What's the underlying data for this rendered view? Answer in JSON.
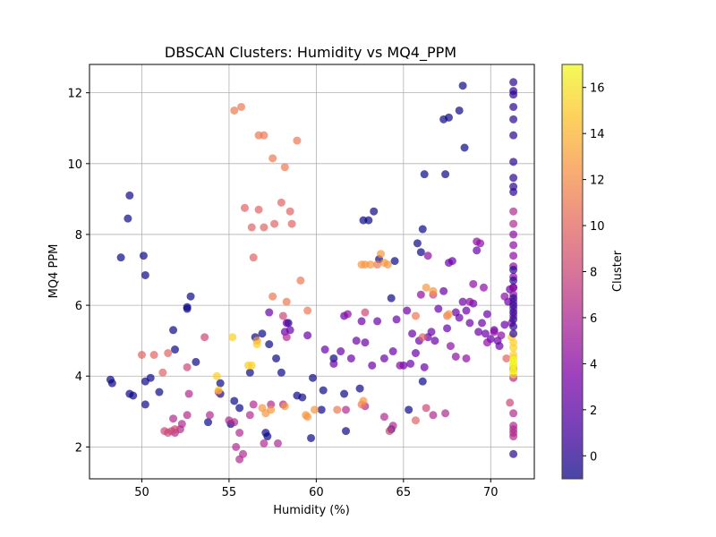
{
  "chart_data": {
    "type": "scatter",
    "title": "DBSCAN Clusters: Humidity vs MQ4_PPM",
    "xlabel": "Humidity (%)",
    "ylabel": "MQ4 PPM",
    "xlim": [
      47,
      72.5
    ],
    "ylim": [
      1.1,
      12.8
    ],
    "xticks": [
      50,
      55,
      60,
      65,
      70
    ],
    "yticks": [
      2,
      4,
      6,
      8,
      10,
      12
    ],
    "grid": true,
    "colormap": "plasma",
    "colorbar": {
      "label": "Cluster",
      "range": [
        -1,
        17
      ],
      "ticks": [
        0,
        2,
        4,
        6,
        8,
        10,
        12,
        14,
        16
      ]
    },
    "series": [
      {
        "cluster": -1,
        "color": "#0d0887",
        "points": [
          [
            48.2,
            3.9
          ],
          [
            48.3,
            3.8
          ],
          [
            48.8,
            7.35
          ],
          [
            49.2,
            8.45
          ],
          [
            49.3,
            9.1
          ],
          [
            49.3,
            3.5
          ],
          [
            49.5,
            3.45
          ],
          [
            50.1,
            7.4
          ],
          [
            50.2,
            6.85
          ],
          [
            50.2,
            3.85
          ],
          [
            50.2,
            3.2
          ],
          [
            50.5,
            3.95
          ],
          [
            51.0,
            3.55
          ],
          [
            51.8,
            5.3
          ],
          [
            51.9,
            4.75
          ],
          [
            52.6,
            5.95
          ],
          [
            52.6,
            5.9
          ],
          [
            52.8,
            6.25
          ],
          [
            53.1,
            4.4
          ],
          [
            53.8,
            2.7
          ],
          [
            54.5,
            3.8
          ],
          [
            54.5,
            3.5
          ],
          [
            55.1,
            2.65
          ],
          [
            55.3,
            3.3
          ],
          [
            55.6,
            3.1
          ],
          [
            56.2,
            4.1
          ],
          [
            56.5,
            5.1
          ],
          [
            56.9,
            5.2
          ],
          [
            57.1,
            2.4
          ],
          [
            57.2,
            2.3
          ],
          [
            57.3,
            4.9
          ],
          [
            57.7,
            4.5
          ],
          [
            58.0,
            4.1
          ],
          [
            58.4,
            5.5
          ],
          [
            58.9,
            3.45
          ],
          [
            59.2,
            3.4
          ],
          [
            59.7,
            2.25
          ],
          [
            59.8,
            3.95
          ],
          [
            60.3,
            3.05
          ],
          [
            60.4,
            3.6
          ],
          [
            61.0,
            4.5
          ],
          [
            61.6,
            3.5
          ],
          [
            61.7,
            2.45
          ],
          [
            62.5,
            3.65
          ],
          [
            62.7,
            8.4
          ],
          [
            63.0,
            8.4
          ],
          [
            63.3,
            8.65
          ],
          [
            63.6,
            7.3
          ],
          [
            64.3,
            2.5
          ],
          [
            64.3,
            6.2
          ],
          [
            64.5,
            7.25
          ],
          [
            65.3,
            3.05
          ],
          [
            65.8,
            7.75
          ],
          [
            66.0,
            7.5
          ],
          [
            66.1,
            3.85
          ],
          [
            66.1,
            8.15
          ],
          [
            66.2,
            9.7
          ],
          [
            67.3,
            11.25
          ],
          [
            67.4,
            9.7
          ],
          [
            67.6,
            11.3
          ],
          [
            68.2,
            11.5
          ],
          [
            68.4,
            12.2
          ],
          [
            68.5,
            10.45
          ]
        ]
      },
      {
        "cluster": 2,
        "color": "#6a00a8",
        "points": [
          [
            57.3,
            5.8
          ],
          [
            58.2,
            5.25
          ],
          [
            58.3,
            5.5
          ],
          [
            58.5,
            5.3
          ],
          [
            59.5,
            5.15
          ],
          [
            60.5,
            4.75
          ],
          [
            61.0,
            4.35
          ],
          [
            61.4,
            4.7
          ],
          [
            61.6,
            5.7
          ],
          [
            62.0,
            4.5
          ],
          [
            62.3,
            5.0
          ],
          [
            62.6,
            5.55
          ],
          [
            62.8,
            4.95
          ],
          [
            63.2,
            4.3
          ],
          [
            63.5,
            5.55
          ],
          [
            63.9,
            4.5
          ],
          [
            64.4,
            4.7
          ],
          [
            64.6,
            5.6
          ],
          [
            65.0,
            4.3
          ],
          [
            65.2,
            5.85
          ],
          [
            65.4,
            4.35
          ],
          [
            65.5,
            5.2
          ],
          [
            65.7,
            4.65
          ],
          [
            65.9,
            5.0
          ],
          [
            66.2,
            4.25
          ],
          [
            66.4,
            5.1
          ],
          [
            66.6,
            5.25
          ],
          [
            66.8,
            5.0
          ],
          [
            67.0,
            5.9
          ],
          [
            67.3,
            6.4
          ],
          [
            67.5,
            5.35
          ],
          [
            67.6,
            7.2
          ],
          [
            67.8,
            7.25
          ],
          [
            68.0,
            5.8
          ],
          [
            68.2,
            5.65
          ],
          [
            68.4,
            6.1
          ],
          [
            68.6,
            5.85
          ],
          [
            68.8,
            5.5
          ],
          [
            69.0,
            6.05
          ],
          [
            69.2,
            7.55
          ],
          [
            69.3,
            5.25
          ],
          [
            69.5,
            5.5
          ],
          [
            69.7,
            5.2
          ],
          [
            69.8,
            5.75
          ],
          [
            70.0,
            5.05
          ],
          [
            70.2,
            5.3
          ],
          [
            70.4,
            5.0
          ],
          [
            70.5,
            4.85
          ],
          [
            70.8,
            5.45
          ],
          [
            71.0,
            6.1
          ],
          [
            71.1,
            6.45
          ],
          [
            71.3,
            6.5
          ]
        ]
      },
      {
        "cluster": 3,
        "color": "#8f0da4",
        "points": [
          [
            61.8,
            5.75
          ],
          [
            64.8,
            4.3
          ],
          [
            66.0,
            6.3
          ],
          [
            66.4,
            7.4
          ],
          [
            67.7,
            4.85
          ],
          [
            68.0,
            4.55
          ],
          [
            68.6,
            4.5
          ],
          [
            68.8,
            6.1
          ],
          [
            69.0,
            6.6
          ],
          [
            69.2,
            7.8
          ],
          [
            69.4,
            7.75
          ],
          [
            69.6,
            6.5
          ],
          [
            69.8,
            4.95
          ],
          [
            70.2,
            5.25
          ],
          [
            70.6,
            5.15
          ],
          [
            70.8,
            6.25
          ],
          [
            71.2,
            5.5
          ],
          [
            71.3,
            5.7
          ],
          [
            71.3,
            5.9
          ],
          [
            71.3,
            6.1
          ],
          [
            71.3,
            6.3
          ],
          [
            71.3,
            6.5
          ],
          [
            71.3,
            6.8
          ],
          [
            71.3,
            7.1
          ],
          [
            71.3,
            7.4
          ],
          [
            71.3,
            7.7
          ],
          [
            71.3,
            8.0
          ]
        ]
      },
      {
        "cluster": 4,
        "color": "#b12a90",
        "points": [
          [
            51.8,
            2.8
          ],
          [
            51.9,
            2.4
          ],
          [
            52.2,
            2.5
          ],
          [
            52.3,
            2.65
          ],
          [
            52.6,
            2.9
          ],
          [
            52.7,
            3.5
          ],
          [
            53.9,
            2.9
          ],
          [
            54.4,
            3.55
          ],
          [
            55.0,
            2.75
          ],
          [
            55.3,
            2.7
          ],
          [
            55.4,
            2.0
          ],
          [
            55.6,
            2.4
          ],
          [
            55.6,
            1.65
          ],
          [
            55.8,
            1.8
          ],
          [
            56.2,
            2.9
          ],
          [
            56.4,
            3.2
          ],
          [
            57.0,
            2.1
          ],
          [
            57.4,
            3.2
          ],
          [
            57.8,
            2.1
          ],
          [
            58.1,
            3.2
          ],
          [
            58.3,
            5.1
          ],
          [
            61.7,
            3.05
          ],
          [
            62.8,
            3.15
          ],
          [
            63.9,
            2.85
          ],
          [
            64.4,
            2.6
          ],
          [
            66.7,
            2.9
          ],
          [
            67.4,
            2.95
          ],
          [
            71.3,
            2.95
          ],
          [
            71.3,
            2.6
          ],
          [
            71.3,
            2.4
          ],
          [
            71.3,
            2.3
          ],
          [
            71.3,
            2.5
          ],
          [
            71.3,
            3.95
          ],
          [
            71.3,
            4.2
          ],
          [
            71.3,
            8.3
          ],
          [
            71.3,
            8.65
          ]
        ]
      },
      {
        "cluster": 6,
        "color": "#cc4778",
        "points": [
          [
            51.3,
            2.45
          ],
          [
            51.5,
            2.4
          ],
          [
            51.7,
            2.45
          ],
          [
            51.9,
            2.5
          ],
          [
            52.6,
            4.25
          ],
          [
            53.6,
            5.1
          ],
          [
            58.1,
            5.7
          ],
          [
            62.8,
            5.8
          ],
          [
            64.2,
            2.45
          ],
          [
            66.3,
            3.1
          ],
          [
            66.7,
            6.3
          ],
          [
            71.1,
            3.25
          ]
        ]
      },
      {
        "cluster": 8,
        "color": "#e16462",
        "points": [
          [
            50.0,
            4.6
          ],
          [
            50.7,
            4.6
          ],
          [
            51.2,
            4.1
          ],
          [
            51.5,
            4.65
          ],
          [
            55.9,
            8.75
          ],
          [
            56.3,
            8.2
          ],
          [
            56.4,
            7.35
          ],
          [
            56.7,
            8.7
          ],
          [
            57.0,
            8.2
          ],
          [
            57.6,
            8.3
          ],
          [
            58.0,
            8.9
          ],
          [
            58.5,
            8.65
          ],
          [
            58.6,
            8.3
          ],
          [
            65.7,
            2.75
          ],
          [
            66.1,
            5.1
          ],
          [
            70.9,
            4.5
          ]
        ]
      },
      {
        "cluster": 10,
        "color": "#ec7853",
        "points": [
          [
            55.3,
            11.5
          ],
          [
            55.7,
            11.6
          ],
          [
            56.7,
            10.8
          ],
          [
            57.0,
            10.8
          ],
          [
            57.5,
            10.15
          ],
          [
            58.2,
            9.9
          ],
          [
            58.9,
            10.65
          ],
          [
            57.5,
            6.25
          ],
          [
            58.3,
            6.1
          ],
          [
            59.1,
            6.7
          ],
          [
            59.5,
            5.85
          ],
          [
            61.2,
            3.05
          ],
          [
            62.6,
            3.2
          ],
          [
            63.5,
            7.15
          ],
          [
            65.7,
            5.7
          ],
          [
            67.5,
            5.7
          ]
        ]
      },
      {
        "cluster": 12,
        "color": "#f89540",
        "points": [
          [
            56.6,
            5.0
          ],
          [
            56.9,
            3.1
          ],
          [
            57.1,
            2.95
          ],
          [
            57.4,
            3.05
          ],
          [
            58.2,
            3.15
          ],
          [
            59.4,
            2.9
          ],
          [
            59.5,
            2.85
          ],
          [
            59.9,
            3.05
          ],
          [
            62.6,
            7.15
          ],
          [
            62.7,
            3.3
          ],
          [
            62.8,
            7.15
          ],
          [
            63.1,
            7.15
          ],
          [
            63.7,
            7.45
          ],
          [
            63.9,
            7.2
          ],
          [
            64.1,
            7.15
          ],
          [
            66.3,
            6.5
          ],
          [
            66.7,
            6.4
          ],
          [
            67.6,
            5.75
          ]
        ]
      },
      {
        "cluster": 14,
        "color": "#fcce25",
        "points": [
          [
            54.3,
            4.0
          ],
          [
            54.4,
            3.6
          ],
          [
            55.2,
            5.1
          ],
          [
            56.1,
            4.3
          ],
          [
            56.3,
            4.3
          ],
          [
            56.6,
            4.9
          ],
          [
            71.2,
            5.1
          ],
          [
            71.3,
            4.3
          ],
          [
            71.3,
            4.6
          ],
          [
            71.3,
            4.8
          ],
          [
            71.3,
            4.5
          ],
          [
            71.3,
            4.2
          ],
          [
            71.3,
            4.05
          ],
          [
            71.3,
            4.95
          ]
        ]
      },
      {
        "cluster": 17,
        "color": "#f0f921",
        "points": [
          [
            71.3,
            4.45
          ],
          [
            71.3,
            4.35
          ],
          [
            71.3,
            4.15
          ]
        ]
      },
      {
        "cluster": 0,
        "color": "#2c0594",
        "points": [
          [
            71.3,
            9.2
          ],
          [
            71.3,
            9.35
          ],
          [
            71.3,
            9.6
          ],
          [
            71.3,
            10.05
          ],
          [
            71.3,
            10.8
          ],
          [
            71.3,
            11.25
          ],
          [
            71.3,
            11.6
          ],
          [
            71.3,
            11.95
          ],
          [
            71.3,
            12.05
          ],
          [
            71.3,
            12.3
          ],
          [
            71.3,
            1.8
          ],
          [
            71.3,
            5.2
          ],
          [
            71.3,
            5.4
          ],
          [
            71.3,
            5.6
          ],
          [
            71.3,
            5.8
          ],
          [
            71.3,
            6.0
          ],
          [
            71.3,
            6.2
          ],
          [
            71.3,
            6.7
          ],
          [
            71.3,
            7.0
          ]
        ]
      }
    ]
  }
}
